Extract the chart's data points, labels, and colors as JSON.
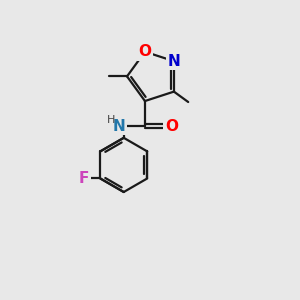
{
  "background_color": "#e8e8e8",
  "bond_color": "#1a1a1a",
  "atom_colors": {
    "O": "#ff0000",
    "N_isoxazole": "#0000cc",
    "N_amide": "#2277aa",
    "F": "#cc44bb",
    "H": "#444444",
    "C": "#1a1a1a"
  },
  "font_size_atoms": 11,
  "font_size_small": 9,
  "figsize": [
    3.0,
    3.0
  ],
  "dpi": 100
}
